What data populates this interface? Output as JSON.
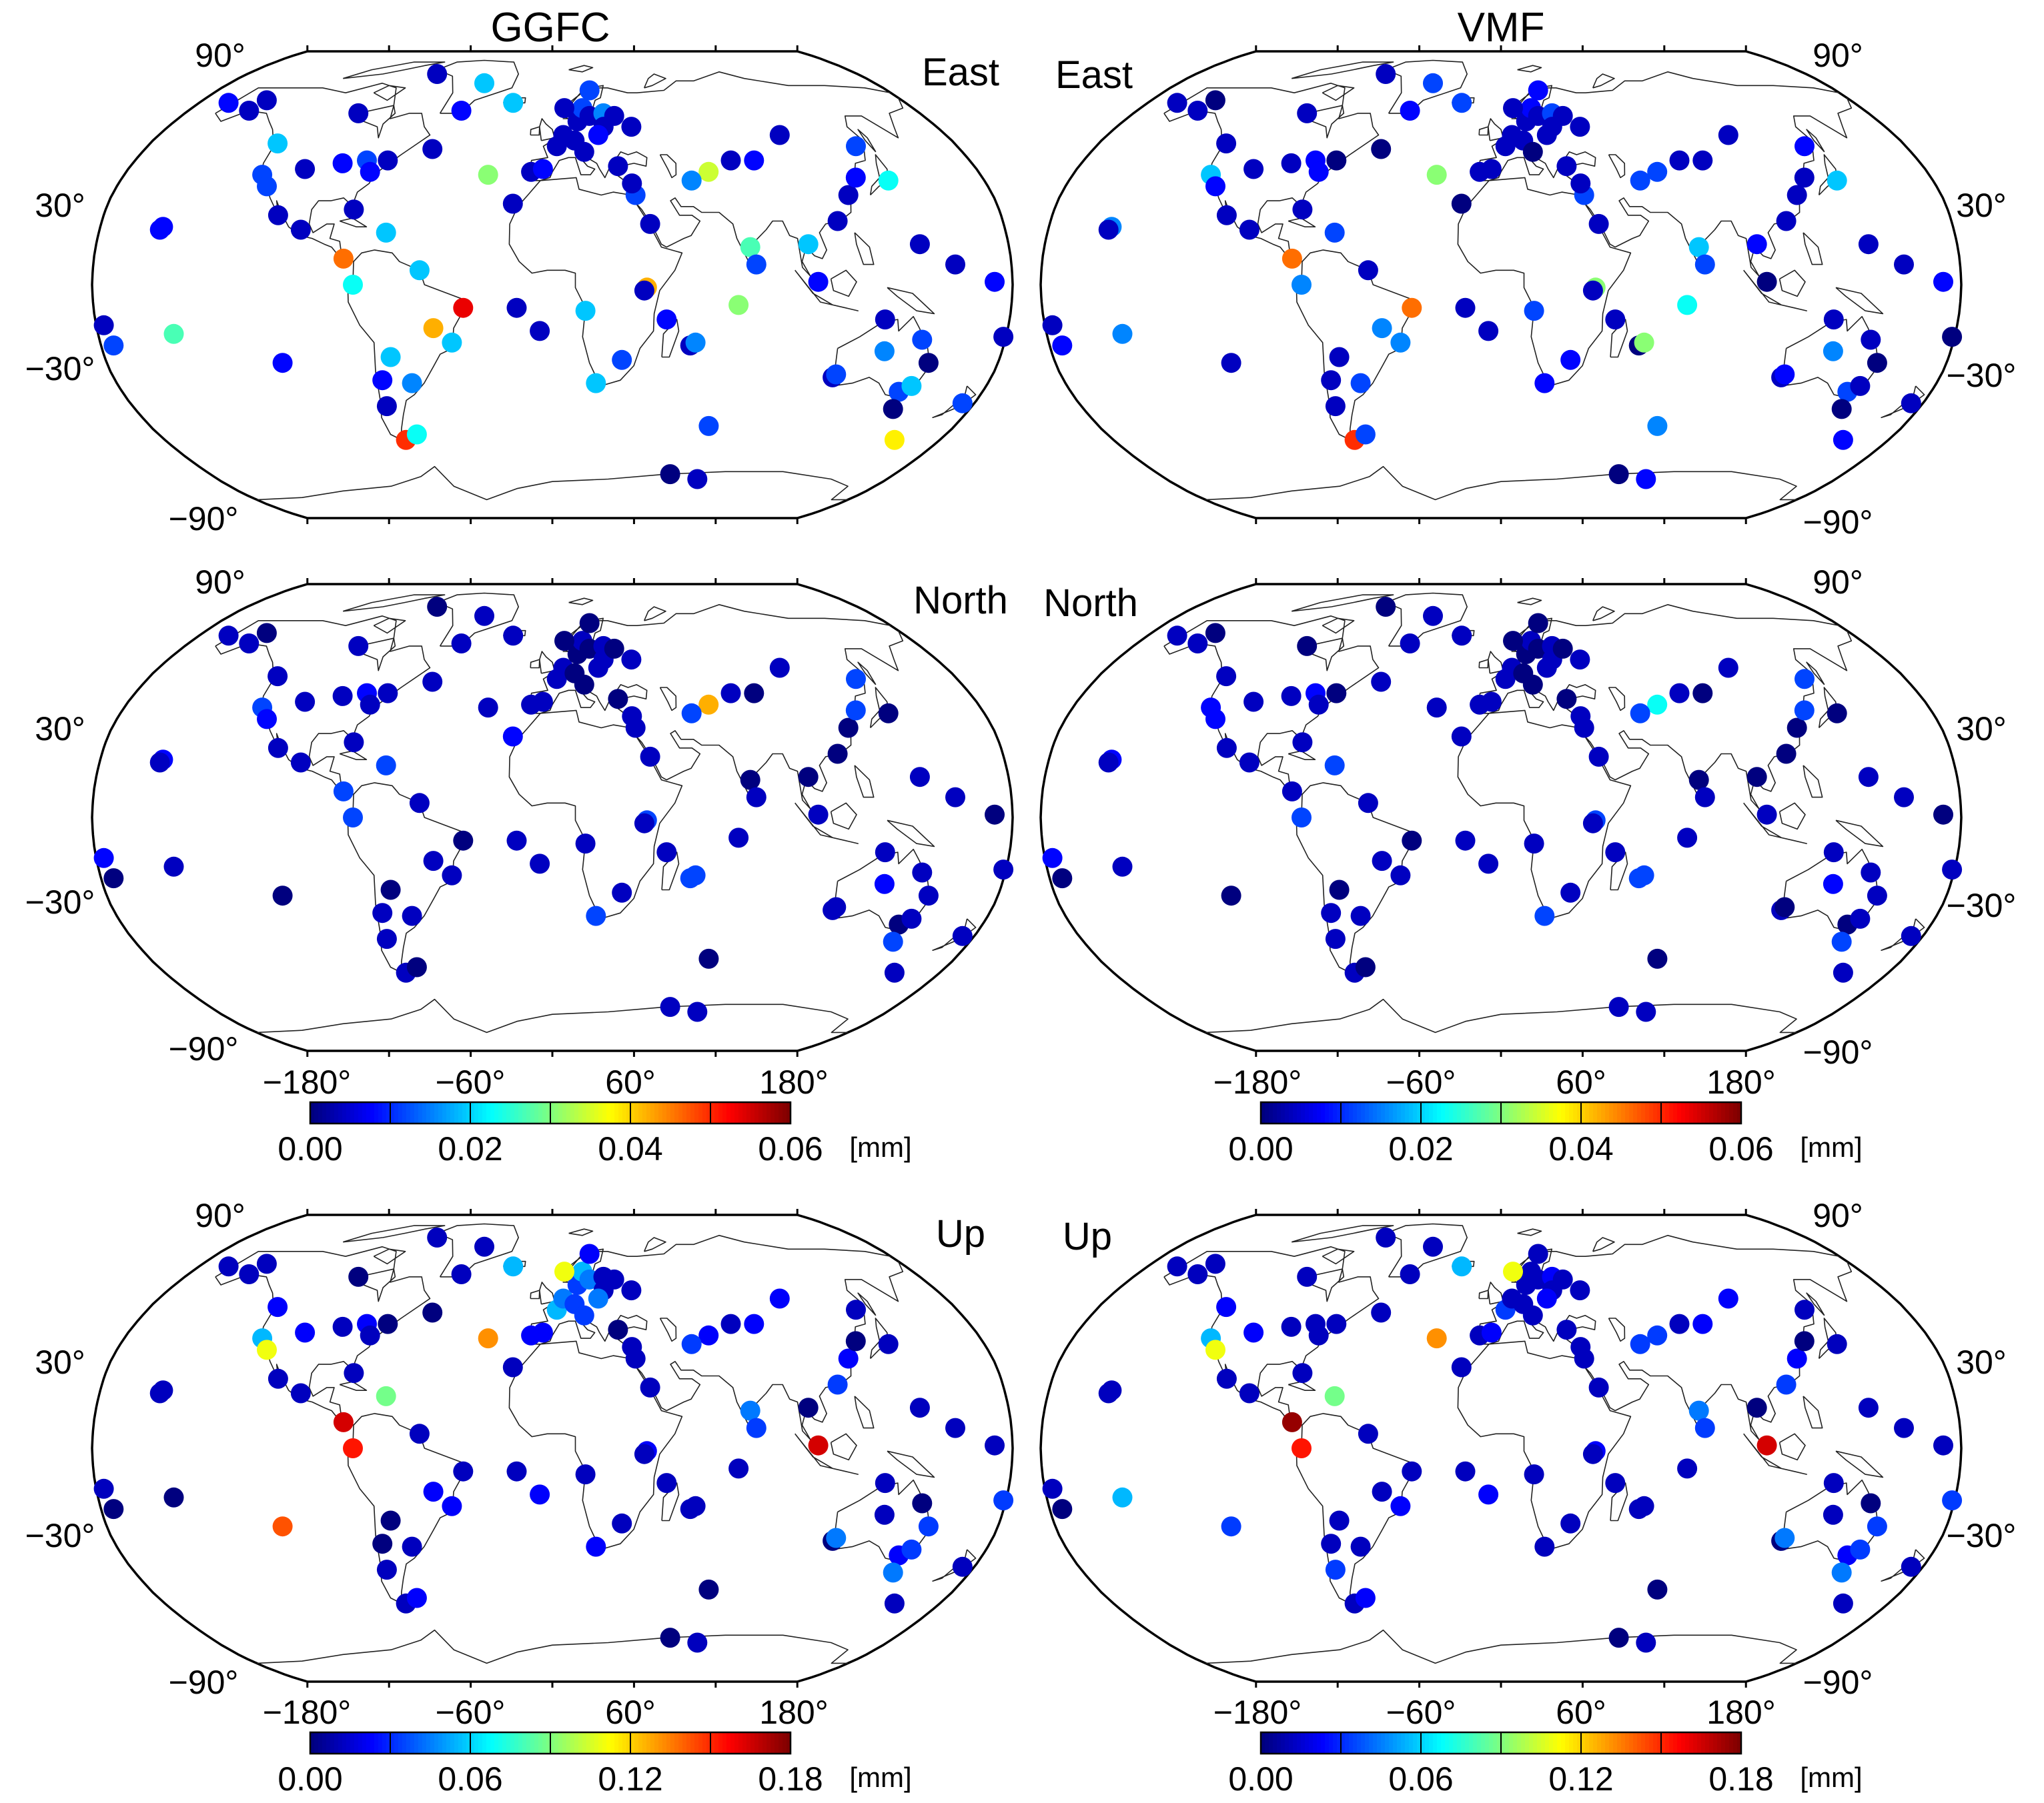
{
  "titles": {
    "left": "GGFC",
    "right": "VMF"
  },
  "components": {
    "east": "East",
    "north": "North",
    "up": "Up"
  },
  "lat_labels": {
    "north": "90°",
    "mid_north": "30°",
    "mid_south": "−30°",
    "south": "−90°"
  },
  "lon_labels": [
    "−180°",
    "−60°",
    "60°",
    "180°"
  ],
  "colorbars": {
    "horizontal": {
      "ticks": [
        "0.00",
        "0.02",
        "0.04",
        "0.06"
      ],
      "unit": "[mm]"
    },
    "up": {
      "ticks": [
        "0.00",
        "0.06",
        "0.12",
        "0.18"
      ],
      "unit": "[mm]"
    },
    "colors": [
      "#00007f",
      "#0000ff",
      "#007fff",
      "#00ffff",
      "#7fff7f",
      "#ffff00",
      "#ff7f00",
      "#ff0000",
      "#7f0000"
    ]
  },
  "map_meta": {
    "projection": "Robinson",
    "lat_range": [
      -90,
      90
    ],
    "lon_range": [
      -180,
      180
    ]
  },
  "stations": [
    {
      "lon": -165,
      "lat": 64
    },
    {
      "lon": -150,
      "lat": 61
    },
    {
      "lon": -147,
      "lat": 65
    },
    {
      "lon": -123,
      "lat": 49
    },
    {
      "lon": -122,
      "lat": 38
    },
    {
      "lon": -118,
      "lat": 34
    },
    {
      "lon": -105,
      "lat": 40
    },
    {
      "lon": -95,
      "lat": 60
    },
    {
      "lon": -90,
      "lat": 42
    },
    {
      "lon": -80,
      "lat": 43
    },
    {
      "lon": -77,
      "lat": 39
    },
    {
      "lon": -71,
      "lat": 43
    },
    {
      "lon": -68,
      "lat": 76
    },
    {
      "lon": -53,
      "lat": 47
    },
    {
      "lon": -45,
      "lat": 61
    },
    {
      "lon": -38,
      "lat": 72
    },
    {
      "lon": -155,
      "lat": 20
    },
    {
      "lon": -156,
      "lat": 19
    },
    {
      "lon": -110,
      "lat": 24
    },
    {
      "lon": -100,
      "lat": 19
    },
    {
      "lon": -82,
      "lat": 9
    },
    {
      "lon": -78,
      "lat": 0
    },
    {
      "lon": -66,
      "lat": 18
    },
    {
      "lon": -52,
      "lat": 5
    },
    {
      "lon": -47,
      "lat": -15
    },
    {
      "lon": -35,
      "lat": -8
    },
    {
      "lon": -40,
      "lat": -20
    },
    {
      "lon": -58,
      "lat": -34
    },
    {
      "lon": -65,
      "lat": -25
    },
    {
      "lon": -70,
      "lat": -33
    },
    {
      "lon": -71,
      "lat": -42
    },
    {
      "lon": -68,
      "lat": -54
    },
    {
      "lon": -62,
      "lat": -52
    },
    {
      "lon": -109,
      "lat": -27
    },
    {
      "lon": -150,
      "lat": -17
    },
    {
      "lon": -177,
      "lat": -14
    },
    {
      "lon": -16,
      "lat": 28
    },
    {
      "lon": -9,
      "lat": 39
    },
    {
      "lon": -4,
      "lat": 40
    },
    {
      "lon": 2,
      "lat": 48
    },
    {
      "lon": 5,
      "lat": 52
    },
    {
      "lon": 10,
      "lat": 50
    },
    {
      "lon": 12,
      "lat": 57
    },
    {
      "lon": 15,
      "lat": 62
    },
    {
      "lon": 18,
      "lat": 59
    },
    {
      "lon": 20,
      "lat": 69
    },
    {
      "lon": 25,
      "lat": 60
    },
    {
      "lon": 24,
      "lat": 55
    },
    {
      "lon": 14,
      "lat": 46
    },
    {
      "lon": 21,
      "lat": 52
    },
    {
      "lon": 30,
      "lat": 59
    },
    {
      "lon": 37,
      "lat": 55
    },
    {
      "lon": 28,
      "lat": 41
    },
    {
      "lon": 34,
      "lat": 31
    },
    {
      "lon": 33,
      "lat": 35
    },
    {
      "lon": 39,
      "lat": 21
    },
    {
      "lon": 45,
      "lat": -12
    },
    {
      "lon": 37,
      "lat": -1
    },
    {
      "lon": 18,
      "lat": -34
    },
    {
      "lon": 28,
      "lat": -26
    },
    {
      "lon": 13,
      "lat": -9
    },
    {
      "lon": -14,
      "lat": -8
    },
    {
      "lon": -5,
      "lat": -16
    },
    {
      "lon": 55,
      "lat": -21
    },
    {
      "lon": 57,
      "lat": -20
    },
    {
      "lon": 70,
      "lat": -49
    },
    {
      "lon": 62,
      "lat": -67
    },
    {
      "lon": 78,
      "lat": -69
    },
    {
      "lon": 77,
      "lat": 43
    },
    {
      "lon": 66,
      "lat": 39
    },
    {
      "lon": 58,
      "lat": 36
    },
    {
      "lon": 87,
      "lat": 43
    },
    {
      "lon": 78,
      "lat": 13
    },
    {
      "lon": 80,
      "lat": 7
    },
    {
      "lon": 73,
      "lat": -7
    },
    {
      "lon": 101,
      "lat": 14
    },
    {
      "lon": 104,
      "lat": 1
    },
    {
      "lon": 114,
      "lat": 22
    },
    {
      "lon": 121,
      "lat": 31
    },
    {
      "lon": 127,
      "lat": 37
    },
    {
      "lon": 140,
      "lat": 36
    },
    {
      "lon": 145,
      "lat": 14
    },
    {
      "lon": 158,
      "lat": 7
    },
    {
      "lon": 173,
      "lat": 1
    },
    {
      "lon": 179,
      "lat": -18
    },
    {
      "lon": 115,
      "lat": -32
    },
    {
      "lon": 116,
      "lat": -31
    },
    {
      "lon": 131,
      "lat": -12
    },
    {
      "lon": 133,
      "lat": -23
    },
    {
      "lon": 145,
      "lat": -37
    },
    {
      "lon": 147,
      "lat": -43
    },
    {
      "lon": 149,
      "lat": -35
    },
    {
      "lon": 152,
      "lat": -27
    },
    {
      "lon": 147,
      "lat": -19
    },
    {
      "lon": 175,
      "lat": -41
    },
    {
      "lon": 159,
      "lat": -54
    },
    {
      "lon": -175,
      "lat": -21
    },
    {
      "lon": 135,
      "lat": 48
    },
    {
      "lon": 104,
      "lat": 52
    },
    {
      "lon": -20,
      "lat": 64
    },
    {
      "lon": 6,
      "lat": 62
    },
    {
      "lon": -27,
      "lat": 38
    },
    {
      "lon": 36,
      "lat": -2
    },
    {
      "lon": -80,
      "lat": 26
    }
  ],
  "panels": {
    "ggfc_east": [
      2,
      1,
      1,
      5,
      3,
      3,
      1,
      1,
      2,
      3,
      2,
      1,
      1,
      1,
      2,
      5,
      2,
      2,
      1,
      1,
      12,
      6,
      5,
      5,
      11,
      14,
      5,
      4,
      5,
      2,
      1,
      13,
      6,
      2,
      7,
      1,
      1,
      1,
      2,
      1,
      1,
      1,
      1,
      3,
      1,
      3,
      4,
      1,
      1,
      2,
      1,
      1,
      1,
      3,
      1,
      1,
      2,
      11,
      5,
      3,
      5,
      1,
      1,
      1,
      4,
      3,
      0,
      1,
      1,
      9,
      4,
      2,
      7,
      3,
      8,
      5,
      2,
      1,
      1,
      2,
      6,
      1,
      1,
      2,
      1,
      1,
      3,
      1,
      4,
      3,
      0,
      5,
      0,
      3,
      3,
      10,
      3,
      3,
      1,
      5,
      1,
      8
    ],
    "vmf_east": [
      1,
      1,
      0,
      1,
      5,
      2,
      1,
      1,
      1,
      2,
      2,
      0,
      1,
      0,
      2,
      3,
      4,
      1,
      1,
      1,
      12,
      4,
      3,
      1,
      4,
      12,
      4,
      3,
      1,
      1,
      1,
      13,
      3,
      1,
      4,
      1,
      0,
      1,
      1,
      1,
      1,
      1,
      1,
      2,
      1,
      2,
      3,
      1,
      0,
      1,
      1,
      1,
      1,
      3,
      1,
      1,
      1,
      8,
      2,
      2,
      3,
      1,
      1,
      0,
      8,
      4,
      0,
      2,
      1,
      3,
      3,
      1,
      5,
      3,
      6,
      2,
      0,
      1,
      1,
      1,
      5,
      1,
      1,
      2,
      0,
      1,
      2,
      1,
      4,
      3,
      0,
      1,
      0,
      1,
      1,
      2,
      2,
      2,
      1,
      3,
      1,
      8
    ],
    "ggfc_north": [
      1,
      1,
      0,
      1,
      3,
      2,
      1,
      1,
      1,
      2,
      1,
      1,
      0,
      1,
      1,
      1,
      2,
      1,
      1,
      1,
      3,
      3,
      3,
      1,
      1,
      0,
      1,
      1,
      0,
      1,
      1,
      1,
      0,
      0,
      1,
      2,
      2,
      1,
      1,
      1,
      1,
      0,
      0,
      1,
      0,
      0,
      1,
      1,
      0,
      1,
      0,
      1,
      0,
      1,
      1,
      1,
      1,
      3,
      3,
      1,
      1,
      1,
      1,
      3,
      3,
      0,
      1,
      1,
      1,
      11,
      3,
      0,
      0,
      1,
      1,
      0,
      1,
      0,
      0,
      3,
      0,
      1,
      1,
      0,
      1,
      1,
      1,
      1,
      2,
      0,
      3,
      1,
      1,
      1,
      1,
      1,
      0,
      3,
      1,
      1,
      0,
      1
    ],
    "vmf_north": [
      1,
      1,
      0,
      1,
      2,
      2,
      1,
      0,
      1,
      2,
      1,
      0,
      0,
      1,
      1,
      1,
      2,
      1,
      1,
      1,
      1,
      3,
      3,
      1,
      1,
      0,
      1,
      1,
      0,
      1,
      1,
      1,
      0,
      0,
      1,
      2,
      1,
      1,
      1,
      1,
      1,
      0,
      0,
      1,
      0,
      0,
      1,
      1,
      0,
      1,
      0,
      1,
      0,
      1,
      1,
      1,
      1,
      3,
      3,
      1,
      1,
      1,
      1,
      3,
      3,
      0,
      1,
      1,
      1,
      6,
      3,
      0,
      0,
      1,
      1,
      0,
      1,
      0,
      0,
      3,
      0,
      1,
      1,
      0,
      1,
      1,
      0,
      1,
      2,
      0,
      3,
      1,
      1,
      1,
      1,
      1,
      0,
      3,
      1,
      1,
      0,
      1
    ],
    "ggfc_up": [
      1,
      1,
      1,
      2,
      5,
      10,
      2,
      0,
      1,
      2,
      1,
      0,
      1,
      0,
      1,
      1,
      1,
      1,
      1,
      1,
      15,
      14,
      8,
      1,
      2,
      1,
      2,
      1,
      0,
      0,
      1,
      1,
      2,
      13,
      0,
      1,
      1,
      2,
      2,
      5,
      4,
      3,
      3,
      5,
      4,
      2,
      1,
      1,
      3,
      4,
      1,
      1,
      0,
      1,
      1,
      1,
      1,
      2,
      2,
      1,
      1,
      1,
      2,
      1,
      1,
      0,
      0,
      1,
      1,
      2,
      3,
      2,
      4,
      3,
      1,
      0,
      15,
      3,
      2,
      0,
      1,
      1,
      1,
      1,
      3,
      0,
      4,
      1,
      1,
      2,
      4,
      3,
      3,
      0,
      1,
      1,
      0,
      1,
      2,
      5,
      10,
      12
    ],
    "vmf_up": [
      1,
      1,
      1,
      2,
      5,
      10,
      2,
      1,
      1,
      1,
      1,
      1,
      1,
      1,
      1,
      1,
      1,
      1,
      1,
      1,
      16,
      14,
      8,
      1,
      1,
      1,
      2,
      1,
      1,
      1,
      3,
      1,
      2,
      3,
      5,
      1,
      1,
      1,
      2,
      3,
      1,
      1,
      1,
      1,
      1,
      1,
      2,
      1,
      1,
      2,
      1,
      1,
      1,
      1,
      1,
      1,
      1,
      2,
      1,
      1,
      1,
      1,
      2,
      1,
      1,
      0,
      0,
      1,
      1,
      3,
      3,
      2,
      4,
      3,
      1,
      0,
      15,
      3,
      2,
      0,
      1,
      1,
      1,
      1,
      3,
      0,
      4,
      1,
      1,
      2,
      4,
      3,
      3,
      0,
      1,
      1,
      0,
      1,
      2,
      5,
      10,
      12
    ]
  },
  "panel_scale": {
    "ggfc_east": "horizontal",
    "vmf_east": "horizontal",
    "ggfc_north": "horizontal",
    "vmf_north": "horizontal",
    "ggfc_up": "up",
    "vmf_up": "up"
  }
}
